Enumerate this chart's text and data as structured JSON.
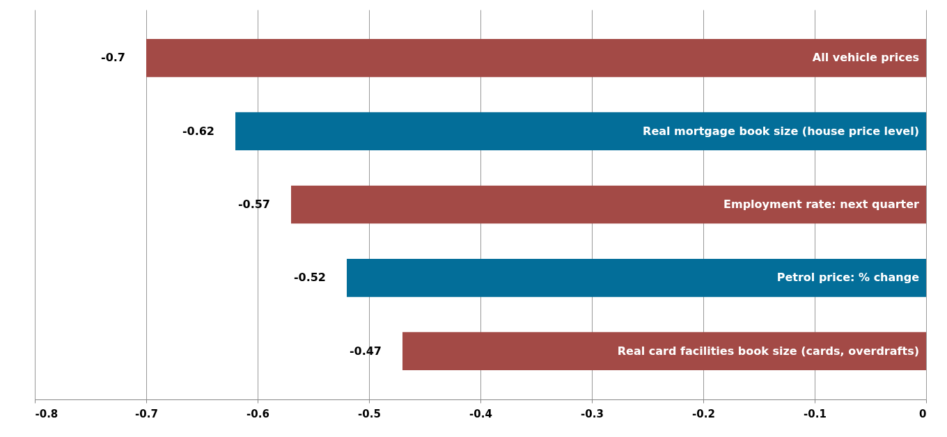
{
  "chart_data": {
    "type": "bar",
    "orientation": "horizontal",
    "categories": [
      "All vehicle prices",
      "Real mortgage book size (house price level)",
      "Employment rate: next quarter",
      "Petrol price: % change",
      "Real card facilities book size (cards, overdrafts)"
    ],
    "values": [
      -0.7,
      -0.62,
      -0.57,
      -0.52,
      -0.47
    ],
    "colors": [
      "#a34a46",
      "#036e99",
      "#a34a46",
      "#036e99",
      "#a34a46"
    ],
    "xlim": [
      -0.8,
      0
    ],
    "xticks": [
      -0.8,
      -0.7,
      -0.6,
      -0.5,
      -0.4,
      -0.3,
      -0.2,
      -0.1,
      0
    ],
    "grid": "x",
    "data_labels": true
  }
}
